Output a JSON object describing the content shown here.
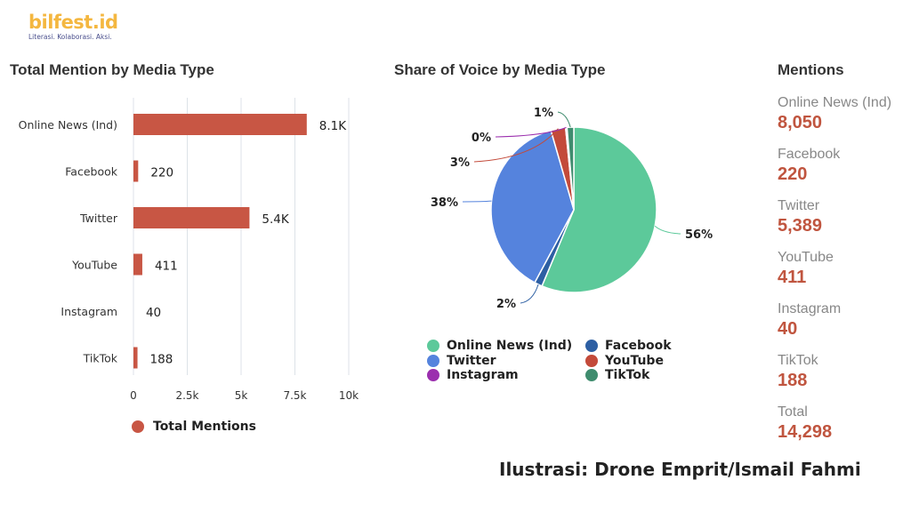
{
  "logo": {
    "name": "bilfest.id",
    "tagline": "Literasi. Kolaborasi. Aksi."
  },
  "credit": "Ilustrasi: Drone Emprit/Ismail Fahmi",
  "colors": {
    "bar": "#c85644",
    "value_red": "#c0553f",
    "grid": "#d8dde3"
  },
  "chart_data": [
    {
      "type": "bar",
      "orientation": "horizontal",
      "title": "Total Mention by Media Type",
      "categories": [
        "Online News (Ind)",
        "Facebook",
        "Twitter",
        "YouTube",
        "Instagram",
        "TikTok"
      ],
      "values": [
        8050,
        220,
        5389,
        411,
        40,
        188
      ],
      "data_labels": [
        "8.1K",
        "220",
        "5.4K",
        "411",
        "40",
        "188"
      ],
      "xlim": [
        0,
        10000
      ],
      "xticks": [
        0,
        2500,
        5000,
        7500,
        10000
      ],
      "xtick_labels": [
        "0",
        "2.5k",
        "5k",
        "7.5k",
        "10k"
      ],
      "grid": true,
      "legend": {
        "position": "bottom",
        "entries": [
          "Total Mentions"
        ]
      },
      "series": [
        {
          "name": "Total Mentions",
          "color": "#c85644",
          "values": [
            8050,
            220,
            5389,
            411,
            40,
            188
          ]
        }
      ]
    },
    {
      "type": "pie",
      "title": "Share of Voice by Media Type",
      "slices": [
        {
          "label": "Online News (Ind)",
          "value": 8050,
          "pct_label": "56%",
          "color": "#5cc99a"
        },
        {
          "label": "Facebook",
          "value": 220,
          "pct_label": "2%",
          "color": "#2d5fa3"
        },
        {
          "label": "Twitter",
          "value": 5389,
          "pct_label": "38%",
          "color": "#5583dd"
        },
        {
          "label": "YouTube",
          "value": 411,
          "pct_label": "3%",
          "color": "#c34a3a"
        },
        {
          "label": "Instagram",
          "value": 40,
          "pct_label": "0%",
          "color": "#9b2fae"
        },
        {
          "label": "TikTok",
          "value": 188,
          "pct_label": "1%",
          "color": "#3f8c6e"
        }
      ],
      "legend": {
        "position": "bottom",
        "entries": [
          "Online News (Ind)",
          "Facebook",
          "Twitter",
          "YouTube",
          "Instagram",
          "TikTok"
        ]
      }
    }
  ],
  "mentions": {
    "title": "Mentions",
    "items": [
      {
        "label": "Online News (Ind)",
        "value": "8,050"
      },
      {
        "label": "Facebook",
        "value": "220"
      },
      {
        "label": "Twitter",
        "value": "5,389"
      },
      {
        "label": "YouTube",
        "value": "411"
      },
      {
        "label": "Instagram",
        "value": "40"
      },
      {
        "label": "TikTok",
        "value": "188"
      },
      {
        "label": "Total",
        "value": "14,298"
      }
    ]
  }
}
